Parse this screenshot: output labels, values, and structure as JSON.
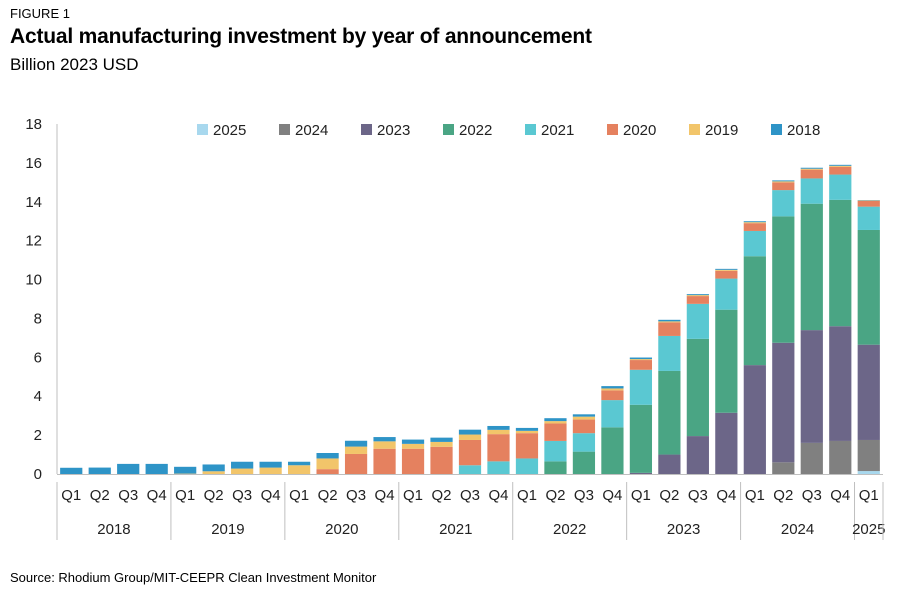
{
  "header": {
    "figure_label": "FIGURE 1",
    "title": "Actual manufacturing investment by year of announcement",
    "subtitle": "Billion 2023 USD"
  },
  "footer": {
    "source": "Source: Rhodium Group/MIT-CEEPR Clean Investment Monitor"
  },
  "chart_data": {
    "type": "bar",
    "stacked": true,
    "title": "Actual manufacturing investment by year of announcement",
    "ylabel": "Billion 2023 USD",
    "ylim": [
      0,
      18
    ],
    "yticks": [
      0,
      2,
      4,
      6,
      8,
      10,
      12,
      14,
      16,
      18
    ],
    "grid": false,
    "legend_position": "top-center",
    "categories": [
      "Q1",
      "Q2",
      "Q3",
      "Q4",
      "Q1",
      "Q2",
      "Q3",
      "Q4",
      "Q1",
      "Q2",
      "Q3",
      "Q4",
      "Q1",
      "Q2",
      "Q3",
      "Q4",
      "Q1",
      "Q2",
      "Q3",
      "Q4",
      "Q1",
      "Q2",
      "Q3",
      "Q4",
      "Q1",
      "Q2",
      "Q3",
      "Q4",
      "Q1"
    ],
    "year_groups": [
      {
        "label": "2018",
        "count": 4
      },
      {
        "label": "2019",
        "count": 4
      },
      {
        "label": "2020",
        "count": 4
      },
      {
        "label": "2021",
        "count": 4
      },
      {
        "label": "2022",
        "count": 4
      },
      {
        "label": "2023",
        "count": 4
      },
      {
        "label": "2024",
        "count": 4
      },
      {
        "label": "2025",
        "count": 1
      }
    ],
    "series": [
      {
        "name": "2018",
        "color": "#2e94c7",
        "values": [
          0.32,
          0.33,
          0.52,
          0.52,
          0.35,
          0.35,
          0.35,
          0.3,
          0.18,
          0.28,
          0.3,
          0.22,
          0.22,
          0.22,
          0.25,
          0.2,
          0.15,
          0.15,
          0.12,
          0.12,
          0.08,
          0.08,
          0.05,
          0.05,
          0.05,
          0.05,
          0.05,
          0.05,
          0.02
        ]
      },
      {
        "name": "2019",
        "color": "#f2c56a",
        "values": [
          0,
          0,
          0,
          0,
          0.02,
          0.14,
          0.28,
          0.33,
          0.45,
          0.55,
          0.38,
          0.38,
          0.25,
          0.25,
          0.28,
          0.22,
          0.12,
          0.12,
          0.15,
          0.1,
          0.05,
          0.05,
          0.05,
          0.05,
          0.05,
          0.05,
          0.05,
          0.05,
          0.02
        ]
      },
      {
        "name": "2020",
        "color": "#e5815f",
        "values": [
          0,
          0,
          0,
          0,
          0,
          0,
          0,
          0,
          0,
          0.25,
          1.03,
          1.3,
          1.3,
          1.4,
          1.3,
          1.4,
          1.3,
          0.9,
          0.7,
          0.5,
          0.5,
          0.7,
          0.4,
          0.4,
          0.4,
          0.4,
          0.45,
          0.4,
          0.3
        ]
      },
      {
        "name": "2021",
        "color": "#5ac8d2",
        "values": [
          0,
          0,
          0,
          0,
          0,
          0,
          0,
          0,
          0,
          0,
          0,
          0,
          0,
          0,
          0.45,
          0.65,
          0.8,
          1.05,
          0.95,
          1.4,
          1.8,
          1.8,
          1.8,
          1.6,
          1.3,
          1.35,
          1.3,
          1.3,
          1.2
        ]
      },
      {
        "name": "2022",
        "color": "#4aa584",
        "values": [
          0,
          0,
          0,
          0,
          0,
          0,
          0,
          0,
          0,
          0,
          0,
          0,
          0,
          0,
          0,
          0,
          0,
          0.65,
          1.15,
          2.4,
          3.5,
          4.3,
          5.0,
          5.3,
          5.6,
          6.5,
          6.5,
          6.5,
          5.9
        ]
      },
      {
        "name": "2023",
        "color": "#6c6688",
        "values": [
          0,
          0,
          0,
          0,
          0,
          0,
          0,
          0,
          0,
          0,
          0,
          0,
          0,
          0,
          0,
          0,
          0,
          0,
          0,
          0,
          0.06,
          1.0,
          1.95,
          3.15,
          5.6,
          6.15,
          5.8,
          5.9,
          4.9
        ]
      },
      {
        "name": "2024",
        "color": "#808080",
        "values": [
          0,
          0,
          0,
          0,
          0,
          0,
          0,
          0,
          0,
          0,
          0,
          0,
          0,
          0,
          0,
          0,
          0,
          0,
          0,
          0,
          0,
          0,
          0,
          0,
          0,
          0.6,
          1.6,
          1.7,
          1.6
        ]
      },
      {
        "name": "2025",
        "color": "#a8d8ee",
        "values": [
          0,
          0,
          0,
          0,
          0,
          0,
          0,
          0,
          0,
          0,
          0,
          0,
          0,
          0,
          0,
          0,
          0,
          0,
          0,
          0,
          0,
          0,
          0,
          0,
          0,
          0,
          0,
          0,
          0.15
        ]
      }
    ],
    "legend_order": [
      "2025",
      "2024",
      "2023",
      "2022",
      "2021",
      "2020",
      "2019",
      "2018"
    ]
  }
}
